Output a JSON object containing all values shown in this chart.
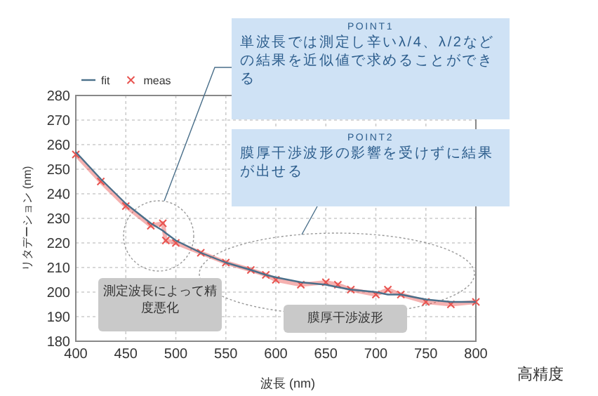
{
  "chart_data": {
    "type": "line",
    "xlabel": "波長 (nm)",
    "ylabel": "リタデーション (nm)",
    "x": [
      400,
      425,
      450,
      475,
      487,
      490,
      500,
      525,
      550,
      575,
      590,
      600,
      625,
      650,
      662,
      675,
      700,
      712,
      725,
      750,
      775,
      800
    ],
    "series": [
      {
        "name": "fit",
        "color": "#4a6f8a",
        "marker": "none",
        "values": [
          257,
          246,
          236,
          228,
          225,
          224,
          221,
          216,
          212,
          209,
          207,
          206,
          204,
          203,
          202,
          201,
          200,
          199,
          199,
          197,
          196,
          196
        ]
      },
      {
        "name": "meas",
        "color": "#e8534f",
        "marker": "cross",
        "values": [
          256,
          245,
          235,
          227,
          228,
          221,
          220,
          216,
          212,
          209,
          207,
          205,
          203,
          204,
          203,
          201,
          199,
          201,
          199,
          196,
          195,
          196
        ]
      }
    ],
    "xlim": [
      400,
      800
    ],
    "xticks": [
      400,
      450,
      500,
      550,
      600,
      650,
      700,
      750,
      800
    ],
    "ylim": [
      180,
      280
    ],
    "yticks": [
      180,
      190,
      200,
      210,
      220,
      230,
      240,
      250,
      260,
      270,
      280
    ],
    "grid": true,
    "legend": "top left",
    "annotations": [
      "POINT1",
      "単波長では測定し辛いλ/4、λ/2などの結果を近似値で求めることができる",
      "POINT2",
      "膜厚干渉波形の影響を受けずに結果が出せる",
      "測定波長によって精度悪化",
      "膜厚干渉波形",
      "高精度"
    ]
  }
}
